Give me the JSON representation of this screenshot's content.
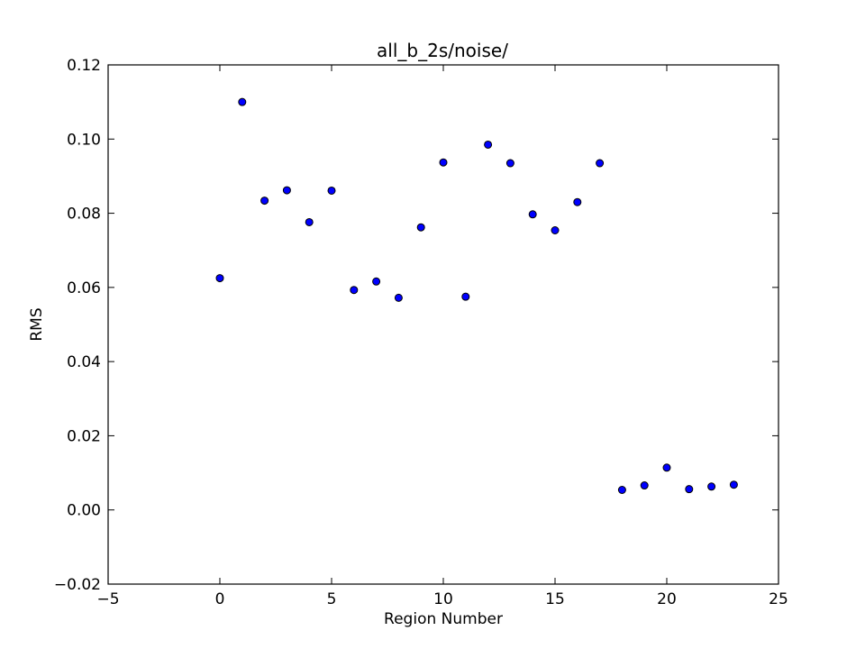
{
  "chart_data": {
    "type": "scatter",
    "title": "all_b_2s/noise/",
    "xlabel": "Region Number",
    "ylabel": "RMS",
    "xlim": [
      -5,
      25
    ],
    "ylim": [
      -0.02,
      0.12
    ],
    "xticks": [
      -5,
      0,
      5,
      10,
      15,
      20,
      25
    ],
    "xtick_labels": [
      "−5",
      "0",
      "5",
      "10",
      "15",
      "20",
      "25"
    ],
    "yticks": [
      -0.02,
      0.0,
      0.02,
      0.04,
      0.06,
      0.08,
      0.1,
      0.12
    ],
    "ytick_labels": [
      "−0.02",
      "0.00",
      "0.02",
      "0.04",
      "0.06",
      "0.08",
      "0.10",
      "0.12"
    ],
    "grid": false,
    "marker_color": "#0000ff",
    "series": [
      {
        "x": [
          0,
          1,
          2,
          3,
          4,
          5,
          6,
          7,
          8,
          9,
          10,
          11,
          12,
          13,
          14,
          15,
          16,
          17,
          18,
          19,
          20,
          21,
          22,
          23
        ],
        "y": [
          0.0625,
          0.11,
          0.0834,
          0.0862,
          0.0776,
          0.0861,
          0.0593,
          0.0616,
          0.0572,
          0.0762,
          0.0937,
          0.0575,
          0.0985,
          0.0935,
          0.0797,
          0.0754,
          0.083,
          0.0935,
          0.0054,
          0.0066,
          0.0114,
          0.0056,
          0.0063,
          0.0068
        ]
      }
    ]
  }
}
